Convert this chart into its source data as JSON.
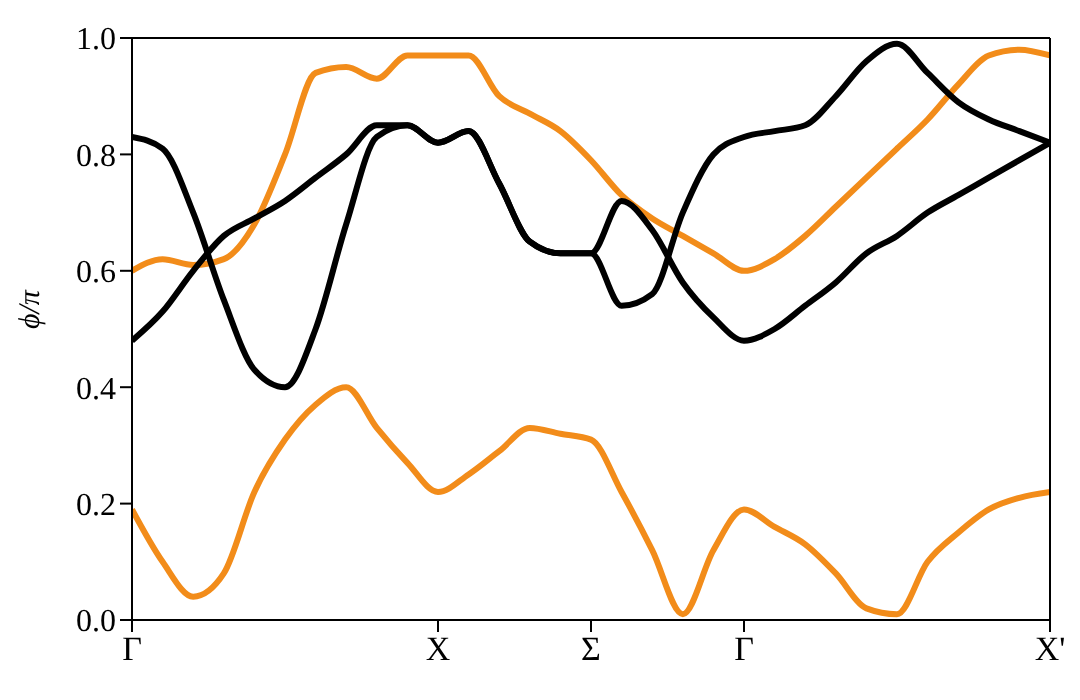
{
  "chart_data": {
    "type": "line",
    "ylabel": "ϕ/π",
    "ylim": [
      0,
      1
    ],
    "categories": [
      "Γ",
      null,
      null,
      null,
      null,
      null,
      null,
      null,
      null,
      null,
      "X",
      null,
      null,
      null,
      null,
      "Σ",
      null,
      null,
      null,
      null,
      "Γ",
      null,
      null,
      null,
      null,
      null,
      null,
      null,
      null,
      null,
      "X'"
    ],
    "yticks": [
      {
        "value": 0,
        "label": "0.0"
      },
      {
        "value": 0.2,
        "label": "0.2"
      },
      {
        "value": 0.4,
        "label": "0.4"
      },
      {
        "value": 0.6,
        "label": "0.6"
      },
      {
        "value": 0.8,
        "label": "0.8"
      },
      {
        "value": 1,
        "label": "1.0"
      }
    ],
    "grid": false,
    "legend": false,
    "marker": "none",
    "line_style": "solid",
    "series": [
      {
        "color": "#f28c1a",
        "values": [
          0.19,
          0.1,
          0.04,
          0.08,
          0.22,
          0.31,
          0.37,
          0.4,
          0.33,
          0.27,
          0.22,
          0.25,
          0.29,
          0.33,
          0.32,
          0.31,
          0.22,
          0.12,
          0.01,
          0.12,
          0.19,
          0.16,
          0.13,
          0.08,
          0.02,
          0.01,
          0.1,
          0.15,
          0.19,
          0.21,
          0.22
        ]
      },
      {
        "color": "#f28c1a",
        "values": [
          0.6,
          0.62,
          0.61,
          0.62,
          0.68,
          0.8,
          0.94,
          0.95,
          0.93,
          0.97,
          0.97,
          0.97,
          0.9,
          0.87,
          0.84,
          0.79,
          0.73,
          0.69,
          0.66,
          0.63,
          0.6,
          0.62,
          0.66,
          0.71,
          0.76,
          0.81,
          0.86,
          0.92,
          0.97,
          0.98,
          0.97
        ]
      },
      {
        "color": "#000000",
        "values": [
          0.83,
          0.81,
          0.7,
          0.55,
          0.43,
          0.4,
          0.5,
          0.68,
          0.83,
          0.85,
          0.82,
          0.84,
          0.75,
          0.65,
          0.63,
          0.63,
          0.72,
          0.67,
          0.58,
          0.52,
          0.48,
          0.5,
          0.54,
          0.58,
          0.63,
          0.66,
          0.7,
          0.73,
          0.76,
          0.79,
          0.82
        ]
      },
      {
        "color": "#000000",
        "values": [
          0.48,
          0.53,
          0.6,
          0.66,
          0.69,
          0.72,
          0.76,
          0.8,
          0.85,
          0.85,
          0.82,
          0.84,
          0.75,
          0.65,
          0.63,
          0.63,
          0.54,
          0.56,
          0.7,
          0.8,
          0.83,
          0.84,
          0.85,
          0.9,
          0.96,
          0.99,
          0.94,
          0.89,
          0.86,
          0.84,
          0.82
        ]
      }
    ]
  }
}
